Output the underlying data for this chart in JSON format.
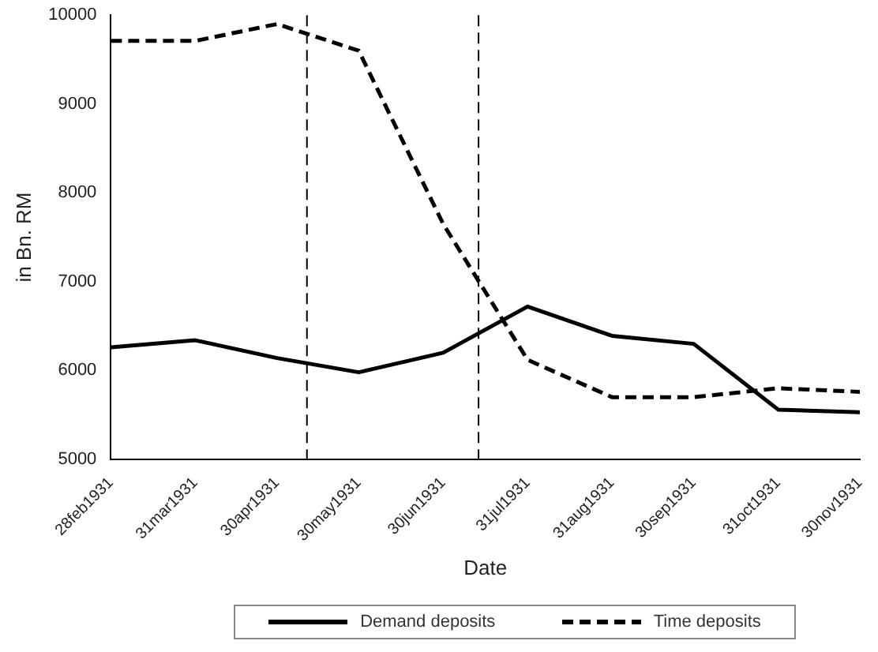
{
  "chart_data": {
    "type": "line",
    "xlabel": "Date",
    "ylabel": "in Bn. RM",
    "x": [
      "1931-02-28",
      "1931-03-31",
      "1931-04-30",
      "1931-05-30",
      "1931-06-30",
      "1931-07-31",
      "1931-08-31",
      "1931-09-30",
      "1931-10-31",
      "1931-11-30"
    ],
    "series": [
      {
        "name": "Demand deposits",
        "color": "#000000",
        "line_style": "solid",
        "values": [
          6260,
          6340,
          6140,
          5980,
          6200,
          6720,
          6390,
          6300,
          5560,
          5530
        ]
      },
      {
        "name": "Time deposits",
        "color": "#000000",
        "line_style": "dashed",
        "values": [
          9710,
          9710,
          9900,
          9600,
          7650,
          6120,
          5700,
          5700,
          5800,
          5760
        ]
      }
    ],
    "xlim": [
      "1931-02-28",
      "1931-11-30"
    ],
    "xticks": [
      {
        "value": "1931-02-28",
        "label": "28feb1931"
      },
      {
        "value": "1931-03-31",
        "label": "31mar1931"
      },
      {
        "value": "1931-04-30",
        "label": "30apr1931"
      },
      {
        "value": "1931-05-30",
        "label": "30may1931"
      },
      {
        "value": "1931-06-30",
        "label": "30jun1931"
      },
      {
        "value": "1931-07-31",
        "label": "31jul1931"
      },
      {
        "value": "1931-08-31",
        "label": "31aug1931"
      },
      {
        "value": "1931-09-30",
        "label": "30sep1931"
      },
      {
        "value": "1931-10-31",
        "label": "31oct1931"
      },
      {
        "value": "1931-11-30",
        "label": "30nov1931"
      }
    ],
    "ylim": [
      5000,
      10000
    ],
    "yticks": [
      5000,
      6000,
      7000,
      8000,
      9000,
      10000
    ],
    "ref_lines": [
      {
        "axis": "x",
        "value": "1931-05-11",
        "line_style": "dashed",
        "color": "#000000"
      },
      {
        "axis": "x",
        "value": "1931-07-13",
        "line_style": "dashed",
        "color": "#000000"
      }
    ],
    "grid": false,
    "legend": "bottom",
    "marker": "none"
  }
}
